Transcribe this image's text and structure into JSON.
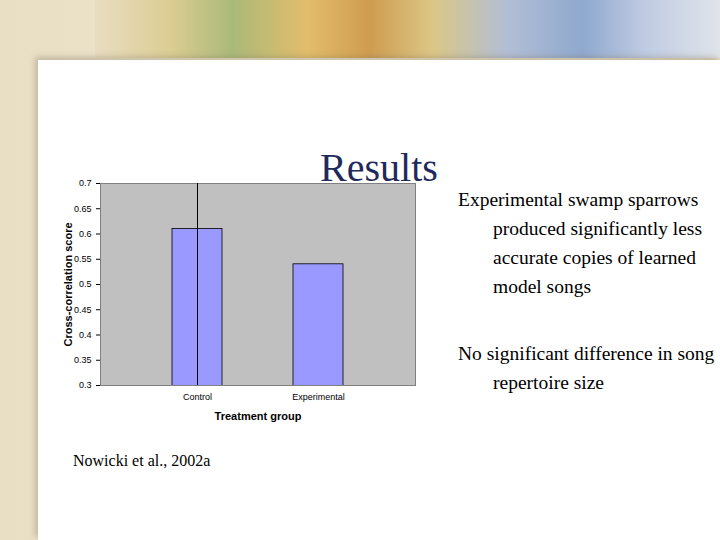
{
  "chart_data": {
    "type": "bar",
    "categories": [
      "Control",
      "Experimental"
    ],
    "values": [
      0.61,
      0.54
    ],
    "color": "#9999ff",
    "x_label": "Treatment group",
    "y_label": "Cross-correlation score",
    "ylim": [
      0.3,
      0.7
    ],
    "yticks": [
      0.3,
      0.35,
      0.4,
      0.45,
      0.5,
      0.55,
      0.6,
      0.65,
      0.7
    ],
    "grid": false
  },
  "slide": {
    "title": "Results",
    "bullets": [
      "Experimental swamp sparrows produced significantly less accurate copies of learned model songs",
      "No significant difference in song repertoire size"
    ],
    "citation": "Nowicki et al., 2002a"
  }
}
